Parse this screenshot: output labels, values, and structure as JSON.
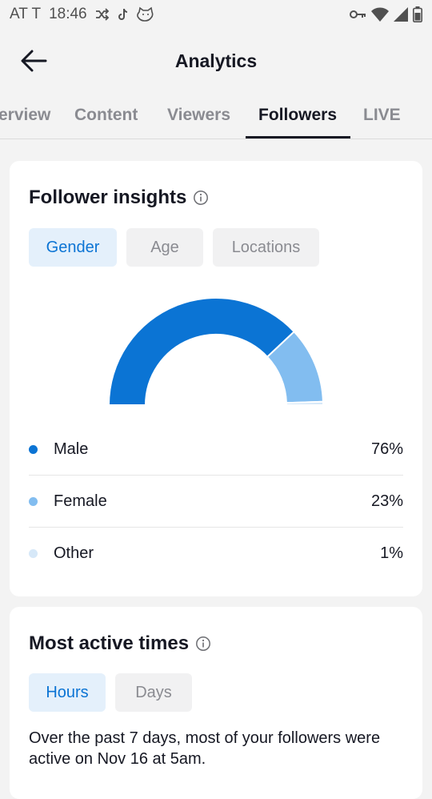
{
  "status_bar": {
    "carrier": "AT T",
    "time": "18:46",
    "icons": [
      "shuffle-icon",
      "tiktok-icon",
      "cat-icon",
      "vpn-key-icon",
      "wifi-icon",
      "signal-icon",
      "battery-icon"
    ]
  },
  "header": {
    "title": "Analytics",
    "back_icon": "arrow-left-icon"
  },
  "tabs": [
    {
      "label": "Overview",
      "visible_label": "erview",
      "active": false
    },
    {
      "label": "Content",
      "active": false
    },
    {
      "label": "Viewers",
      "active": false
    },
    {
      "label": "Followers",
      "active": true
    },
    {
      "label": "LIVE",
      "active": false
    }
  ],
  "follower_insights": {
    "title": "Follower insights",
    "info_icon": "info-icon",
    "chips": [
      {
        "label": "Gender",
        "active": true
      },
      {
        "label": "Age",
        "active": false
      },
      {
        "label": "Locations",
        "active": false
      }
    ],
    "chart_data": {
      "type": "pie",
      "variant": "semi-donut",
      "categories": [
        "Male",
        "Female",
        "Other"
      ],
      "values": [
        76,
        23,
        1
      ],
      "unit": "%",
      "colors": [
        "#0b74d4",
        "#82bdf0",
        "#d6e8f8"
      ]
    },
    "legend": [
      {
        "label": "Male",
        "value": "76%",
        "color": "#0b74d4"
      },
      {
        "label": "Female",
        "value": "23%",
        "color": "#82bdf0"
      },
      {
        "label": "Other",
        "value": "1%",
        "color": "#d6e8f8"
      }
    ]
  },
  "most_active_times": {
    "title": "Most active times",
    "info_icon": "info-icon",
    "chips": [
      {
        "label": "Hours",
        "active": true
      },
      {
        "label": "Days",
        "active": false
      }
    ],
    "summary": "Over the past 7 days, most of your followers were active on Nov 16 at 5am."
  },
  "colors": {
    "accent": "#0b74d4",
    "accent_light": "#82bdf0",
    "accent_pale": "#d6e8f8",
    "chip_active_bg": "#e4f0fb",
    "page_bg": "#f3f3f3"
  }
}
